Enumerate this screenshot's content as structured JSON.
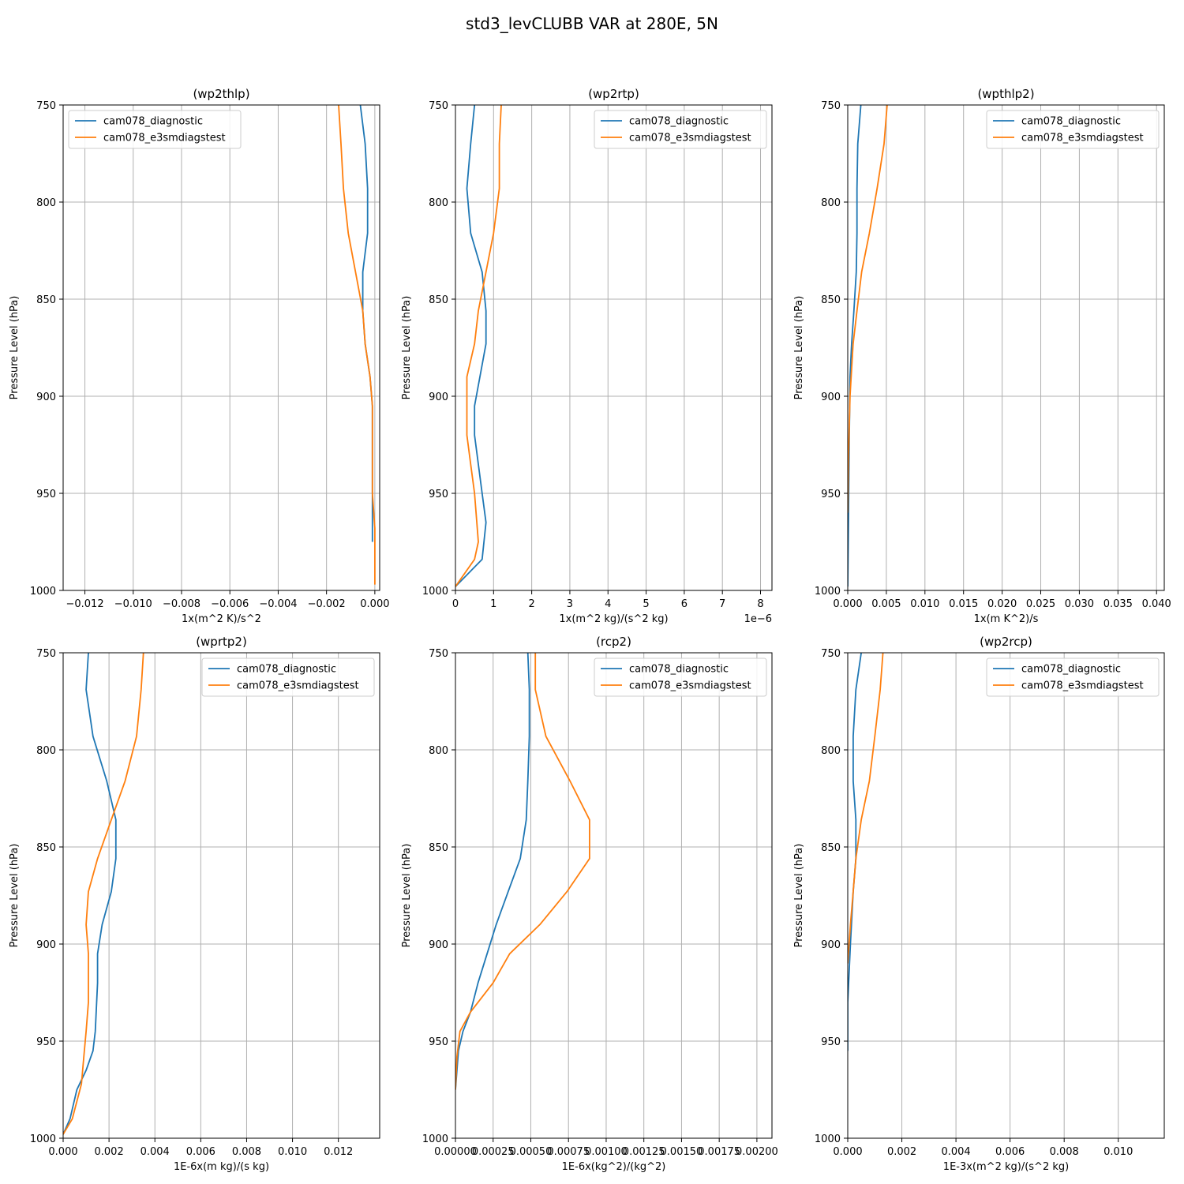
{
  "figure": {
    "title": "std3_levCLUBB VAR at 280E, 5N"
  },
  "colors": {
    "diagnostic": "#1f77b4",
    "e3smdiagstest": "#ff7f0e",
    "grid": "#b0b0b0"
  },
  "chart_data": [
    {
      "type": "line",
      "title": "(wp2thlp)",
      "xlabel": "1x(m^2 K)/s^2",
      "ylabel": "Pressure Level (hPa)",
      "xlim": [
        -0.0129,
        0.0002
      ],
      "ylim": [
        1000,
        750
      ],
      "xticks": [
        -0.012,
        -0.01,
        -0.008,
        -0.006,
        -0.004,
        -0.002,
        0.0
      ],
      "xtick_labels": [
        "−0.012",
        "−0.010",
        "−0.008",
        "−0.006",
        "−0.004",
        "−0.002",
        "0.000"
      ],
      "yticks": [
        750,
        800,
        850,
        900,
        950,
        1000
      ],
      "grid": true,
      "legend": "upper left",
      "series": [
        {
          "name": "cam078_diagnostic",
          "x": [
            -0.0006,
            -0.0004,
            -0.0003,
            -0.0003,
            -0.0005,
            -0.0005,
            -0.0004,
            -0.0002,
            -0.0001,
            -0.0001,
            -0.0001
          ],
          "y": [
            750,
            770,
            793,
            816,
            836,
            856,
            873,
            890,
            905,
            950,
            975
          ]
        },
        {
          "name": "cam078_e3smdiagstest",
          "x": [
            -0.0015,
            -0.0014,
            -0.0013,
            -0.0011,
            -0.0008,
            -0.0005,
            -0.0004,
            -0.0002,
            -0.0001,
            -0.0001,
            0.0,
            0.0,
            0.0
          ],
          "y": [
            750,
            770,
            793,
            816,
            836,
            856,
            873,
            890,
            905,
            950,
            968,
            985,
            997
          ]
        }
      ]
    },
    {
      "type": "line",
      "title": "(wp2rtp)",
      "xlabel": "1x(m^2 kg)/(s^2 kg)",
      "ylabel": "Pressure Level (hPa)",
      "offset_text": "1e−6",
      "xlim": [
        0,
        8.3
      ],
      "ylim": [
        1000,
        750
      ],
      "xticks": [
        0,
        1,
        2,
        3,
        4,
        5,
        6,
        7,
        8
      ],
      "xtick_labels": [
        "0",
        "1",
        "2",
        "3",
        "4",
        "5",
        "6",
        "7",
        "8"
      ],
      "yticks": [
        750,
        800,
        850,
        900,
        950,
        1000
      ],
      "grid": true,
      "legend": "upper right",
      "series": [
        {
          "name": "cam078_diagnostic",
          "x": [
            0.5,
            0.4,
            0.3,
            0.4,
            0.7,
            0.8,
            0.8,
            0.5,
            0.5,
            0.6,
            0.7,
            0.8,
            0.7,
            0.0
          ],
          "y": [
            750,
            770,
            793,
            816,
            836,
            856,
            873,
            905,
            920,
            935,
            950,
            965,
            984,
            998
          ]
        },
        {
          "name": "cam078_e3smdiagstest",
          "x": [
            1.2,
            1.15,
            1.15,
            1.0,
            0.8,
            0.6,
            0.5,
            0.3,
            0.3,
            0.4,
            0.5,
            0.6,
            0.5,
            0.0
          ],
          "y": [
            750,
            770,
            793,
            816,
            836,
            856,
            873,
            890,
            920,
            935,
            950,
            975,
            984,
            998
          ]
        }
      ]
    },
    {
      "type": "line",
      "title": "(wpthlp2)",
      "xlabel": "1x(m K^2)/s",
      "ylabel": "Pressure Level (hPa)",
      "xlim": [
        0,
        0.041
      ],
      "ylim": [
        1000,
        750
      ],
      "xticks": [
        0.0,
        0.005,
        0.01,
        0.015,
        0.02,
        0.025,
        0.03,
        0.035,
        0.04
      ],
      "xtick_labels": [
        "0.000",
        "0.005",
        "0.010",
        "0.015",
        "0.020",
        "0.025",
        "0.030",
        "0.035",
        "0.040"
      ],
      "yticks": [
        750,
        800,
        850,
        900,
        950,
        1000
      ],
      "grid": true,
      "legend": "upper right",
      "series": [
        {
          "name": "cam078_diagnostic",
          "x": [
            0.0017,
            0.0013,
            0.0012,
            0.0012,
            0.0011,
            0.0008,
            0.0005,
            0.0003,
            0.0002,
            0.0001,
            0.0
          ],
          "y": [
            750,
            770,
            793,
            816,
            836,
            856,
            873,
            890,
            920,
            960,
            998
          ]
        },
        {
          "name": "cam078_e3smdiagstest",
          "x": [
            0.0051,
            0.0047,
            0.0038,
            0.0028,
            0.0018,
            0.0012,
            0.0007,
            0.0003,
            0.0001,
            0.0
          ],
          "y": [
            750,
            770,
            793,
            816,
            836,
            856,
            873,
            900,
            930,
            960
          ]
        }
      ]
    },
    {
      "type": "line",
      "title": "(wprtp2)",
      "xlabel": "1E-6x(m kg)/(s kg)",
      "ylabel": "Pressure Level (hPa)",
      "xlim": [
        0,
        0.0138
      ],
      "ylim": [
        1000,
        750
      ],
      "xticks": [
        0.0,
        0.002,
        0.004,
        0.006,
        0.008,
        0.01,
        0.012
      ],
      "xtick_labels": [
        "0.000",
        "0.002",
        "0.004",
        "0.006",
        "0.008",
        "0.010",
        "0.012"
      ],
      "yticks": [
        750,
        800,
        850,
        900,
        950,
        1000
      ],
      "grid": true,
      "legend": "upper right",
      "series": [
        {
          "name": "cam078_diagnostic",
          "x": [
            0.0011,
            0.001,
            0.0013,
            0.0019,
            0.0023,
            0.0023,
            0.0021,
            0.0017,
            0.0015,
            0.0015,
            0.0014,
            0.0013,
            0.001,
            0.0006,
            0.0003,
            0.0
          ],
          "y": [
            750,
            769,
            793,
            816,
            836,
            856,
            873,
            890,
            905,
            920,
            945,
            955,
            965,
            975,
            990,
            998
          ]
        },
        {
          "name": "cam078_e3smdiagstest",
          "x": [
            0.0035,
            0.0034,
            0.0032,
            0.0027,
            0.0021,
            0.0015,
            0.0011,
            0.001,
            0.0011,
            0.0011,
            0.001,
            0.0009,
            0.0008,
            0.0004,
            0.0
          ],
          "y": [
            750,
            769,
            793,
            816,
            836,
            856,
            873,
            890,
            905,
            930,
            945,
            958,
            972,
            990,
            998
          ]
        }
      ]
    },
    {
      "type": "line",
      "title": "(rcp2)",
      "xlabel": "1E-6x(kg^2)/(kg^2)",
      "ylabel": "Pressure Level (hPa)",
      "xlim": [
        0,
        0.0021
      ],
      "ylim": [
        1000,
        750
      ],
      "xticks": [
        0.0,
        0.00025,
        0.0005,
        0.00075,
        0.001,
        0.00125,
        0.0015,
        0.00175,
        0.002
      ],
      "xtick_labels": [
        "0.00000",
        "0.00025",
        "0.00050",
        "0.00075",
        "0.00100",
        "0.00125",
        "0.00150",
        "0.00175",
        "0.00200"
      ],
      "yticks": [
        750,
        800,
        850,
        900,
        950,
        1000
      ],
      "grid": true,
      "legend": "upper right",
      "series": [
        {
          "name": "cam078_diagnostic",
          "x": [
            0.00048,
            0.00049,
            0.00049,
            0.00048,
            0.00047,
            0.00043,
            0.00035,
            0.00027,
            0.00021,
            0.00015,
            0.0001,
            5e-05,
            2e-05,
            0.0
          ],
          "y": [
            750,
            769,
            793,
            816,
            836,
            856,
            873,
            890,
            905,
            920,
            935,
            945,
            955,
            975
          ]
        },
        {
          "name": "cam078_e3smdiagstest",
          "x": [
            0.00053,
            0.00053,
            0.0006,
            0.00076,
            0.00089,
            0.00089,
            0.00074,
            0.00056,
            0.00036,
            0.00025,
            0.0001,
            3e-05,
            1e-05,
            0.0
          ],
          "y": [
            750,
            769,
            793,
            816,
            836,
            856,
            873,
            890,
            905,
            920,
            935,
            945,
            958,
            975
          ]
        }
      ]
    },
    {
      "type": "line",
      "title": "(wp2rcp)",
      "xlabel": "1E-3x(m^2 kg)/(s^2 kg)",
      "ylabel": "Pressure Level (hPa)",
      "xlim": [
        0,
        0.0117
      ],
      "ylim": [
        1000,
        750
      ],
      "xticks": [
        0.0,
        0.002,
        0.004,
        0.006,
        0.008,
        0.01
      ],
      "xtick_labels": [
        "0.000",
        "0.002",
        "0.004",
        "0.006",
        "0.008",
        "0.010"
      ],
      "yticks": [
        750,
        800,
        850,
        900,
        950,
        1000
      ],
      "grid": true,
      "legend": "upper right",
      "series": [
        {
          "name": "cam078_diagnostic",
          "x": [
            0.0005,
            0.0003,
            0.0002,
            0.0002,
            0.0003,
            0.0003,
            0.0002,
            0.0001,
            0.0,
            0.0
          ],
          "y": [
            750,
            769,
            793,
            816,
            836,
            856,
            873,
            900,
            930,
            955
          ]
        },
        {
          "name": "cam078_e3smdiagstest",
          "x": [
            0.0013,
            0.0012,
            0.001,
            0.0008,
            0.0005,
            0.0003,
            0.0002,
            0.0001,
            0.0
          ],
          "y": [
            750,
            769,
            793,
            816,
            836,
            856,
            873,
            890,
            910
          ]
        }
      ]
    }
  ]
}
